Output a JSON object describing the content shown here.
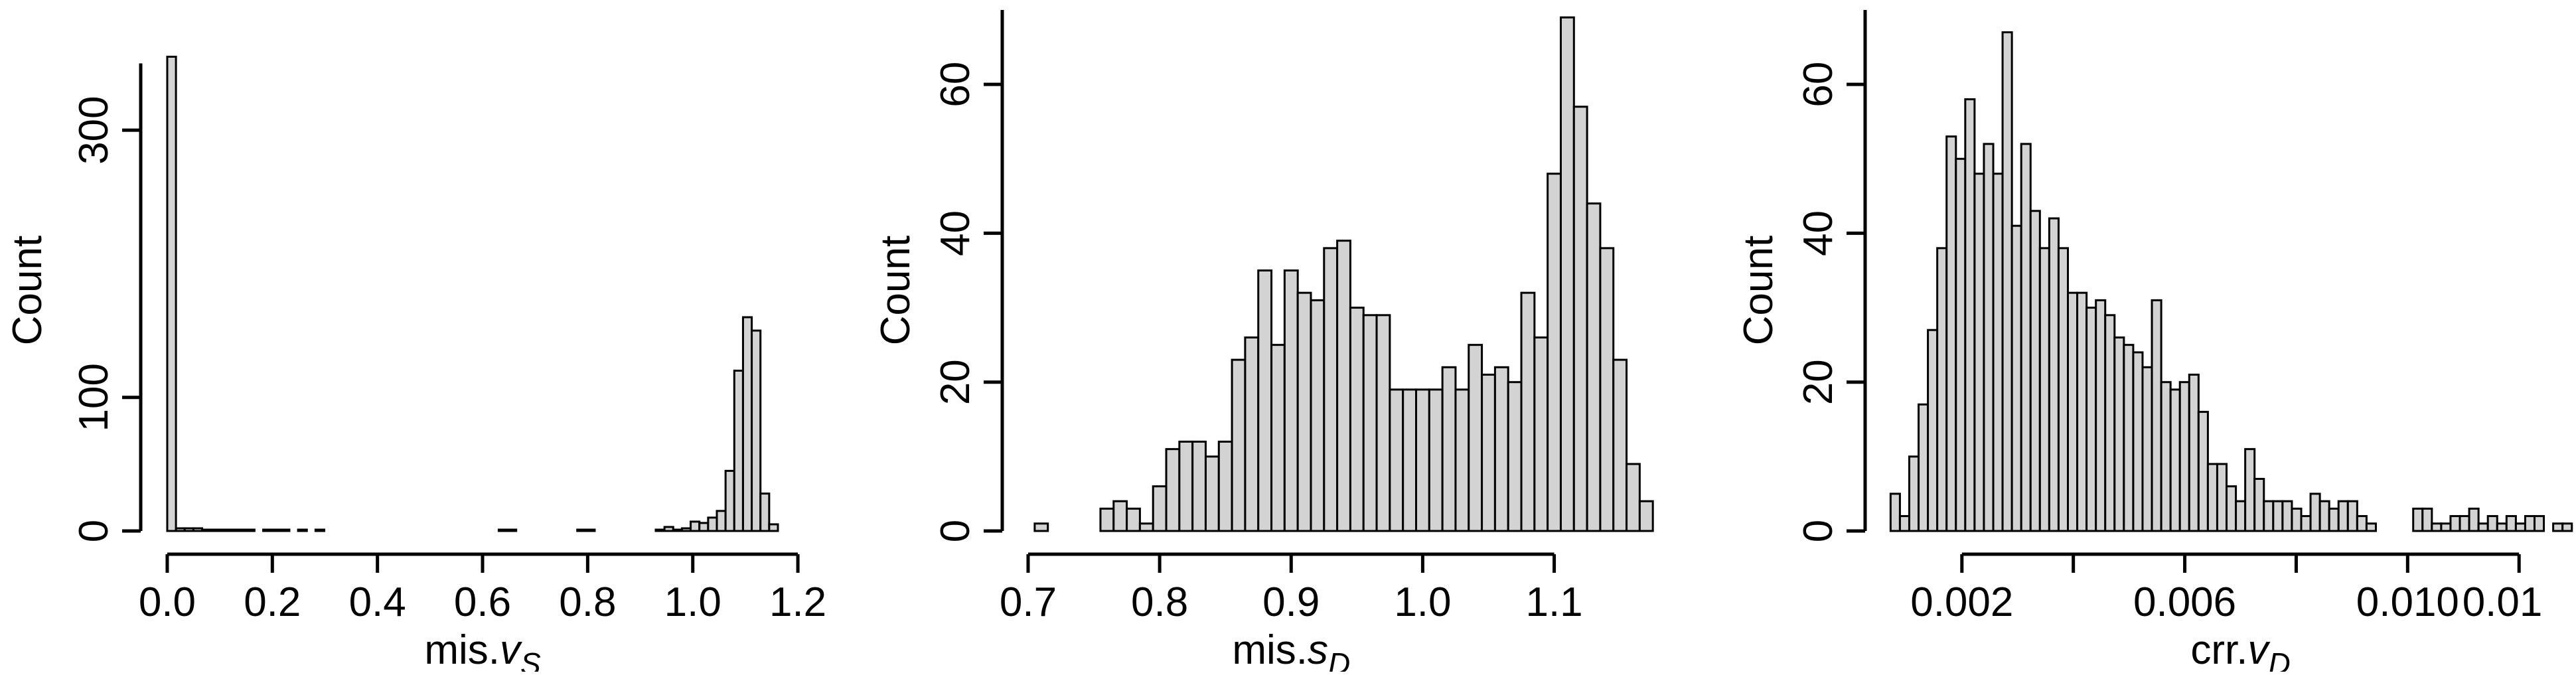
{
  "colors": {
    "bar_fill": "#d3d3d3",
    "bar_stroke": "#000000",
    "axis": "#000000",
    "background": "#ffffff"
  },
  "chart_data": [
    {
      "type": "bar",
      "ylabel": "Count",
      "xlabel": {
        "prefix": "mis.",
        "var": "v",
        "sub": "S"
      },
      "xlim": [
        -0.005,
        1.21
      ],
      "ylim": [
        0,
        390
      ],
      "bin_start": 0.0,
      "bin_width": 0.0166,
      "x_ticks": [
        0.0,
        0.2,
        0.4,
        0.6,
        0.8,
        1.0,
        1.2
      ],
      "x_tick_labels": [
        "0.0",
        "0.2",
        "0.4",
        "0.6",
        "0.8",
        "1.0",
        "1.2"
      ],
      "y_ticks": [
        0,
        100,
        300
      ],
      "y_tick_labels": [
        "0",
        "100",
        "300"
      ],
      "y_axis_max": 350,
      "values": [
        355,
        2,
        2,
        2,
        1,
        1,
        1,
        1,
        1,
        1,
        0,
        1,
        1,
        1,
        0,
        1,
        0,
        1,
        0,
        0,
        0,
        0,
        0,
        0,
        0,
        0,
        0,
        0,
        0,
        0,
        0,
        0,
        0,
        0,
        0,
        0,
        0,
        0,
        1,
        1,
        0,
        0,
        0,
        0,
        0,
        0,
        0,
        1,
        1,
        0,
        0,
        0,
        0,
        0,
        0,
        0,
        1,
        3,
        1,
        2,
        7,
        6,
        10,
        15,
        45,
        120,
        160,
        150,
        28,
        5
      ]
    },
    {
      "type": "bar",
      "ylabel": "Count",
      "xlabel": {
        "prefix": "mis.",
        "var": "s",
        "sub": "D"
      },
      "xlim": [
        0.698,
        1.185
      ],
      "ylim": [
        0,
        70
      ],
      "bin_start": 0.705,
      "bin_width": 0.01,
      "x_ticks": [
        0.7,
        0.8,
        0.9,
        1.0,
        1.1
      ],
      "x_tick_labels": [
        "0.7",
        "0.8",
        "0.9",
        "1.0",
        "1.1"
      ],
      "y_ticks": [
        0,
        20,
        40,
        60
      ],
      "y_tick_labels": [
        "0",
        "20",
        "40",
        "60"
      ],
      "y_axis_max": 70,
      "values": [
        1,
        0,
        0,
        0,
        0,
        3,
        4,
        3,
        1,
        6,
        11,
        12,
        12,
        10,
        12,
        23,
        26,
        35,
        25,
        35,
        32,
        31,
        38,
        39,
        30,
        29,
        29,
        19,
        19,
        19,
        19,
        22,
        19,
        25,
        21,
        22,
        20,
        32,
        26,
        48,
        69,
        57,
        44,
        38,
        23,
        9,
        4
      ]
    },
    {
      "type": "bar",
      "ylabel": "Count",
      "xlabel": {
        "prefix": "crr.",
        "var": "v",
        "sub": "D"
      },
      "xlim": [
        0.00068,
        0.0122
      ],
      "ylim": [
        0,
        70
      ],
      "bin_start": 0.00072,
      "bin_width": 0.0001675,
      "x_ticks": [
        0.002,
        0.004,
        0.006,
        0.008,
        0.01,
        0.012
      ],
      "x_tick_labels": [
        "0.002",
        "",
        "0.006",
        "",
        "0.010",
        ""
      ],
      "y_ticks": [
        0,
        20,
        40,
        60
      ],
      "y_tick_labels": [
        "0",
        "20",
        "40",
        "60"
      ],
      "y_axis_max": 70,
      "extra_tick_label": {
        "value": 0.0117,
        "text": "0.01"
      },
      "values": [
        5,
        2,
        10,
        17,
        27,
        38,
        53,
        50,
        58,
        48,
        52,
        48,
        67,
        41,
        52,
        43,
        38,
        42,
        38,
        32,
        32,
        30,
        31,
        29,
        26,
        25,
        24,
        22,
        31,
        20,
        19,
        20,
        21,
        16,
        9,
        9,
        6,
        4,
        11,
        7,
        4,
        4,
        4,
        3,
        2,
        5,
        4,
        3,
        4,
        4,
        2,
        1,
        0,
        0,
        0,
        0,
        3,
        3,
        1,
        1,
        2,
        2,
        3,
        1,
        2,
        1,
        2,
        1,
        2,
        2,
        0,
        1,
        1,
        0,
        1
      ]
    }
  ]
}
